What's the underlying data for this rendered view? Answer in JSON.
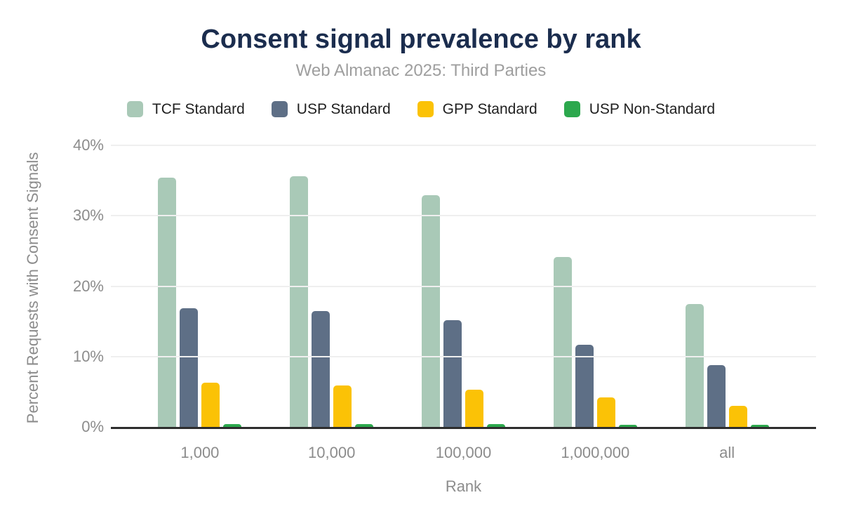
{
  "header": {
    "title": "Consent signal prevalence by rank",
    "subtitle": "Web Almanac 2025: Third Parties"
  },
  "chart_data": {
    "type": "bar",
    "title": "Consent signal prevalence by rank",
    "subtitle": "Web Almanac 2025: Third Parties",
    "categories": [
      "1,000",
      "10,000",
      "100,000",
      "1,000,000",
      "all"
    ],
    "series": [
      {
        "name": "TCF Standard",
        "color": "#a9c9b7",
        "values": [
          35.4,
          35.6,
          32.9,
          24.1,
          17.5
        ]
      },
      {
        "name": "USP Standard",
        "color": "#5e6f86",
        "values": [
          16.9,
          16.5,
          15.2,
          11.7,
          8.8
        ]
      },
      {
        "name": "GPP Standard",
        "color": "#fbc206",
        "values": [
          6.3,
          5.9,
          5.3,
          4.2,
          3.0
        ]
      },
      {
        "name": "USP Non-Standard",
        "color": "#2ca84d",
        "values": [
          0.4,
          0.4,
          0.4,
          0.3,
          0.3
        ]
      }
    ],
    "xlabel": "Rank",
    "ylabel": "Percent Requests with Consent Signals",
    "ylim": [
      0,
      40
    ],
    "yticks": [
      0,
      10,
      20,
      30,
      40
    ],
    "ytick_labels": [
      "0%",
      "10%",
      "20%",
      "30%",
      "40%"
    ],
    "grid": "horizontal",
    "legend_position": "top"
  },
  "colors": {
    "title": "#1b2d4e",
    "subtitle": "#9e9e9e",
    "axis_text": "#8c8c8c",
    "legend_text": "#1f1f1f",
    "gridline": "#efefef",
    "axis_line": "#2d2d2d",
    "background": "#ffffff"
  }
}
